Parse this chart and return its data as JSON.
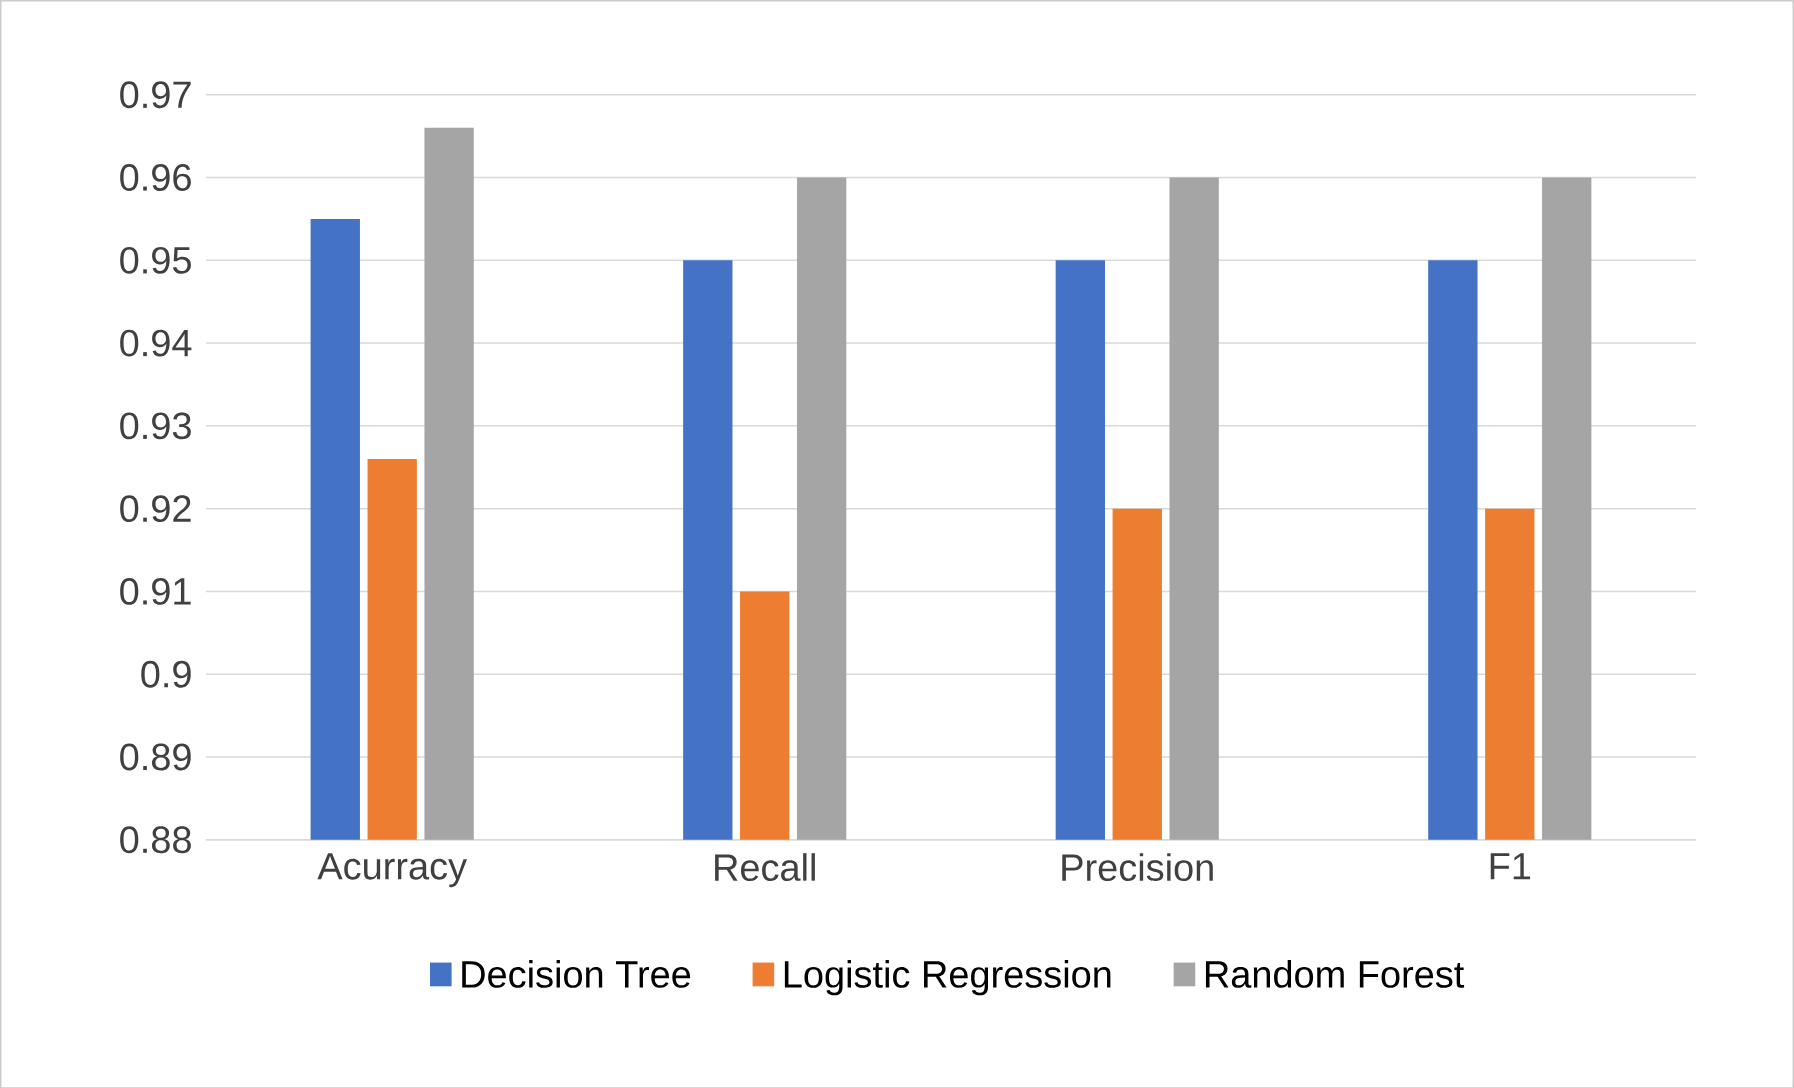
{
  "chart_data": {
    "type": "bar",
    "categories": [
      "Acurracy",
      "Recall",
      "Precision",
      "F1"
    ],
    "series": [
      {
        "name": "Decision Tree",
        "color": "#4472c4",
        "values": [
          0.955,
          0.95,
          0.95,
          0.95
        ]
      },
      {
        "name": "Logistic Regression",
        "color": "#ed7d31",
        "values": [
          0.926,
          0.91,
          0.92,
          0.92
        ]
      },
      {
        "name": "Random Forest",
        "color": "#a5a5a5",
        "values": [
          0.966,
          0.96,
          0.96,
          0.96
        ]
      }
    ],
    "ylim": [
      0.88,
      0.97
    ],
    "yticks": [
      0.88,
      0.89,
      0.9,
      0.91,
      0.92,
      0.93,
      0.94,
      0.95,
      0.96,
      0.97
    ],
    "grid": "y",
    "legend": "bottom"
  }
}
